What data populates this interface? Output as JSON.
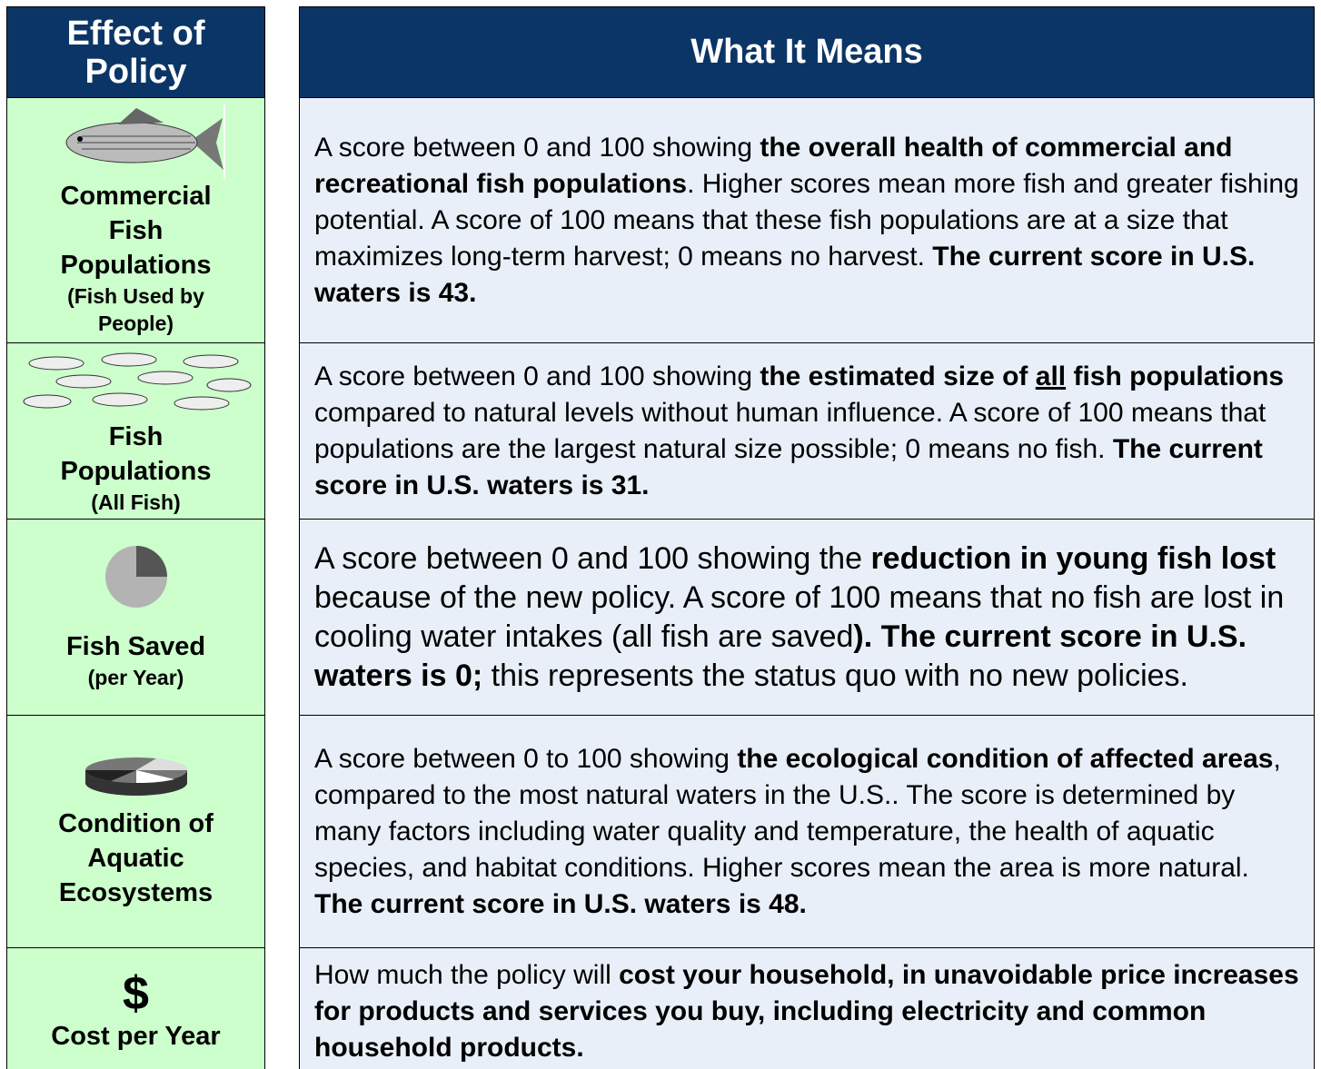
{
  "header": {
    "left": "Effect of Policy",
    "right": "What It Means"
  },
  "rows": [
    {
      "label": "Commercial Fish Populations",
      "sublabel": "(Fish Used by People)",
      "description": [
        {
          "text": "A score between 0 and 100 showing "
        },
        {
          "text": "the overall health of commercial and recreational fish populations",
          "bold": true
        },
        {
          "text": ". Higher scores mean more fish and greater fishing potential. A score of 100 means that these fish populations are at a size that maximizes long-term harvest; 0 means no harvest. "
        },
        {
          "text": "The current score in U.S. waters is 43.",
          "bold": true
        }
      ]
    },
    {
      "label": "Fish Populations",
      "sublabel": "(All Fish)",
      "description": [
        {
          "text": "A score between 0 and 100 showing "
        },
        {
          "text": "the estimated size of ",
          "bold": true
        },
        {
          "text": "all",
          "bold": true,
          "underline": true
        },
        {
          "text": " fish populations",
          "bold": true
        },
        {
          "text": " compared to natural levels without human influence.  A score of 100 means that populations are the largest natural size possible; 0 means no fish. "
        },
        {
          "text": "The current score in U.S. waters is 31.",
          "bold": true
        }
      ]
    },
    {
      "label": "Fish Saved",
      "sublabel": "(per Year)",
      "description": [
        {
          "text": "A score between 0 and 100 showing the "
        },
        {
          "text": "reduction in young fish lost",
          "bold": true
        },
        {
          "text": " because of the new policy. A score of 100 means that no fish are lost in cooling water intakes (all fish are saved"
        },
        {
          "text": "). The current score in U.S. waters is 0;",
          "bold": true
        },
        {
          "text": " this  represents the status quo with no new policies."
        }
      ]
    },
    {
      "label": "Condition of Aquatic Ecosystems",
      "description": [
        {
          "text": "A score between 0 to 100 showing "
        },
        {
          "text": "the ecological condition of affected areas",
          "bold": true
        },
        {
          "text": ", compared to the most natural waters in the U.S.. The score is determined by many factors including water quality and temperature, the health of aquatic species, and habitat conditions. Higher scores mean the area is more natural. "
        },
        {
          "text": "The current score in U.S. waters is 48.",
          "bold": true
        }
      ]
    },
    {
      "icon_text": "$",
      "label": "Cost per Year",
      "description": [
        {
          "text": "How much the policy will "
        },
        {
          "text": "cost your household, in unavoidable price increases for products and services you buy, including electricity and common household products.",
          "bold": true
        }
      ]
    }
  ]
}
